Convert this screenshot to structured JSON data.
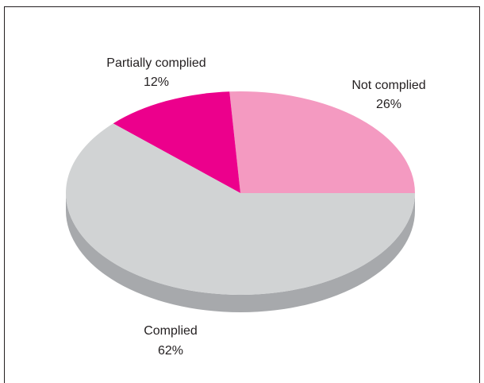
{
  "chart_data": {
    "type": "pie",
    "style": "3d",
    "slices": [
      {
        "label": "Not complied",
        "value": 26,
        "display": "26%",
        "color": "#f49ac1",
        "side_color": "#d483a6"
      },
      {
        "label": "Partially complied",
        "value": 12,
        "display": "12%",
        "color": "#ec008c",
        "side_color": "#b8006d"
      },
      {
        "label": "Complied",
        "value": 62,
        "display": "62%",
        "color": "#d1d3d4",
        "side_color": "#a7a9ac"
      }
    ],
    "legend": "none"
  }
}
